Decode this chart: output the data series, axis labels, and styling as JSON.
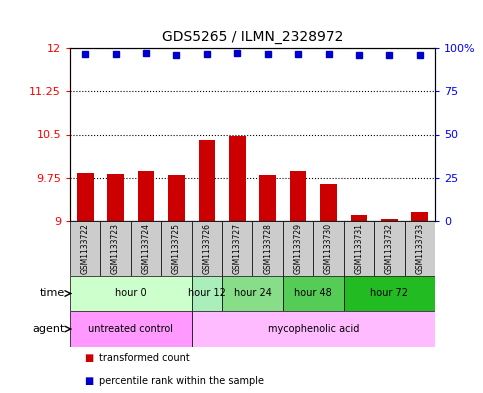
{
  "title": "GDS5265 / ILMN_2328972",
  "samples": [
    "GSM1133722",
    "GSM1133723",
    "GSM1133724",
    "GSM1133725",
    "GSM1133726",
    "GSM1133727",
    "GSM1133728",
    "GSM1133729",
    "GSM1133730",
    "GSM1133731",
    "GSM1133732",
    "GSM1133733"
  ],
  "bar_values": [
    9.83,
    9.81,
    9.87,
    9.79,
    10.4,
    10.47,
    9.8,
    9.87,
    9.65,
    9.11,
    9.03,
    9.15
  ],
  "percentile_values": [
    96.5,
    96.5,
    97.0,
    96.2,
    96.7,
    97.2,
    96.5,
    96.8,
    96.5,
    96.2,
    95.8,
    96.2
  ],
  "y_min": 9.0,
  "y_max": 12.0,
  "y_ticks": [
    9.0,
    9.75,
    10.5,
    11.25,
    12.0
  ],
  "y_tick_labels": [
    "9",
    "9.75",
    "10.5",
    "11.25",
    "12"
  ],
  "right_y_ticks": [
    0,
    25,
    50,
    75,
    100
  ],
  "right_y_tick_labels": [
    "0",
    "25",
    "50",
    "75",
    "100%"
  ],
  "bar_color": "#cc0000",
  "dot_color": "#0000cc",
  "bar_baseline": 9.0,
  "time_groups": [
    {
      "label": "hour 0",
      "start": 0,
      "end": 3,
      "color": "#ccffcc"
    },
    {
      "label": "hour 12",
      "start": 4,
      "end": 4,
      "color": "#aaeebb"
    },
    {
      "label": "hour 24",
      "start": 5,
      "end": 6,
      "color": "#88dd88"
    },
    {
      "label": "hour 48",
      "start": 7,
      "end": 8,
      "color": "#55cc55"
    },
    {
      "label": "hour 72",
      "start": 9,
      "end": 11,
      "color": "#22bb22"
    }
  ],
  "agent_groups": [
    {
      "label": "untreated control",
      "start": 0,
      "end": 3,
      "color": "#ff99ff"
    },
    {
      "label": "mycophenolic acid",
      "start": 4,
      "end": 11,
      "color": "#ffbbff"
    }
  ],
  "time_label": "time",
  "agent_label": "agent",
  "legend_bar_label": "transformed count",
  "legend_dot_label": "percentile rank within the sample",
  "sample_box_color": "#cccccc",
  "bg_color": "#ffffff"
}
